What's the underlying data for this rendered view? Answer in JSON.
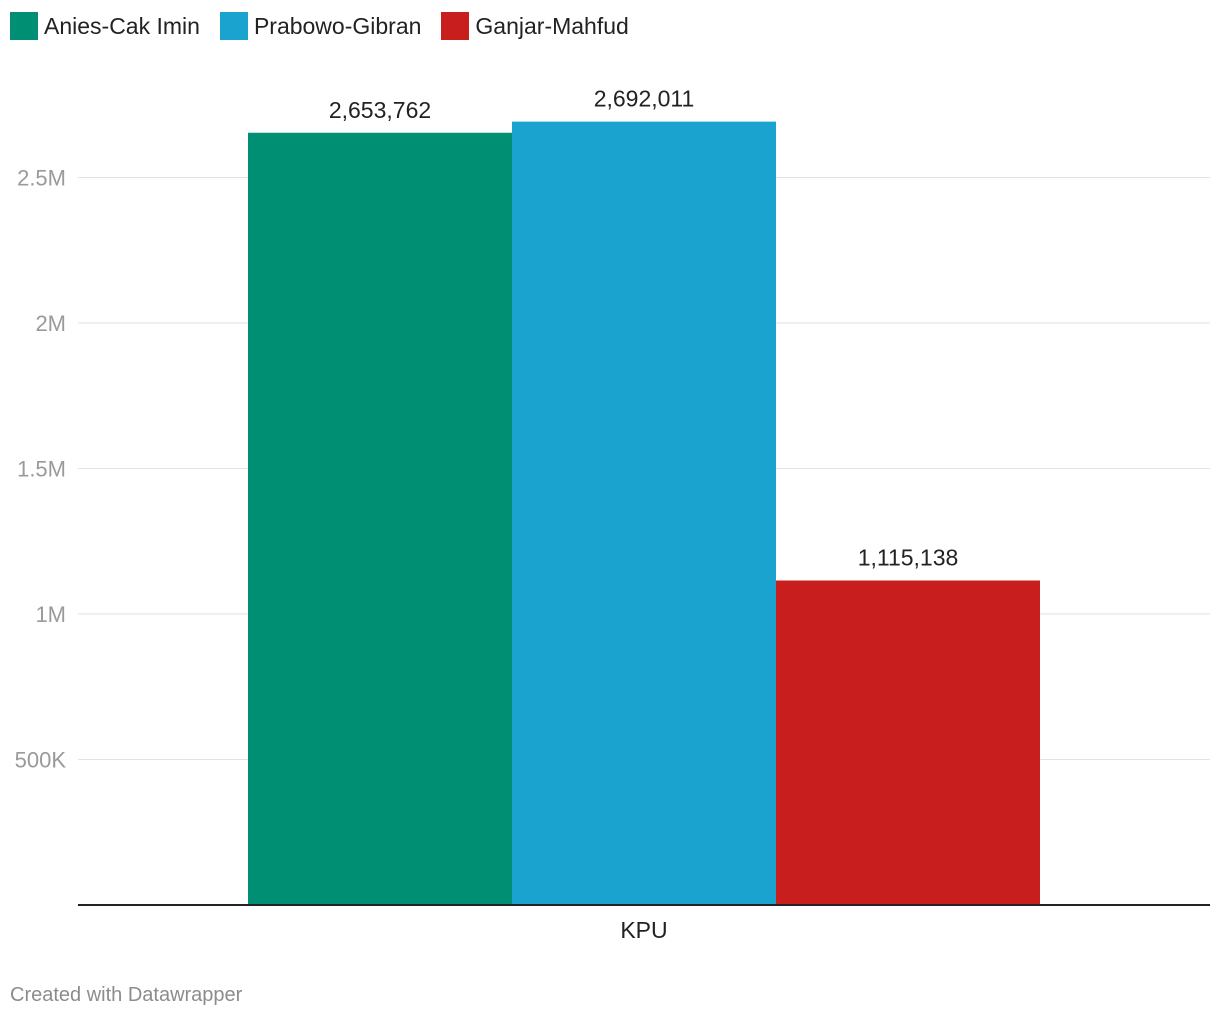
{
  "chart_data": {
    "type": "bar",
    "categories": [
      "KPU"
    ],
    "series": [
      {
        "name": "Anies-Cak Imin",
        "values": [
          2653762
        ],
        "color": "#008f73",
        "label": "2,653,762"
      },
      {
        "name": "Prabowo-Gibran",
        "values": [
          2692011
        ],
        "color": "#1aa3cf",
        "label": "2,692,011"
      },
      {
        "name": "Ganjar-Mahfud",
        "values": [
          1115138
        ],
        "color": "#c91e1e",
        "label": "1,115,138"
      }
    ],
    "title": "",
    "xlabel": "",
    "ylabel": "",
    "ylim": [
      0,
      2900000
    ],
    "yticks": [
      {
        "value": 500000,
        "label": "500K"
      },
      {
        "value": 1000000,
        "label": "1M"
      },
      {
        "value": 1500000,
        "label": "1.5M"
      },
      {
        "value": 2000000,
        "label": "2M"
      },
      {
        "value": 2500000,
        "label": "2.5M"
      }
    ],
    "grid": true,
    "legend_position": "top-left"
  },
  "footer": {
    "credit": "Created with Datawrapper"
  }
}
